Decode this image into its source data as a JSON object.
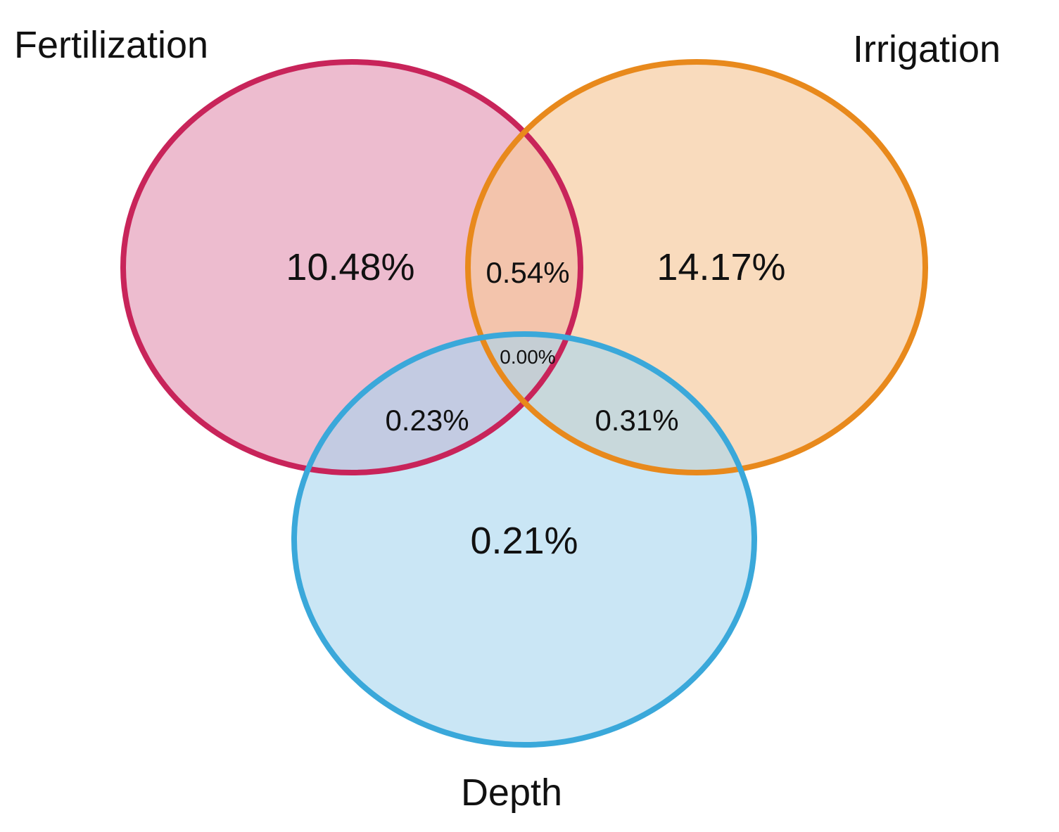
{
  "sets": [
    {
      "key": "fertilization",
      "label": "Fertilization",
      "stroke": "#c8245a",
      "fill": "#e8a3bd"
    },
    {
      "key": "irrigation",
      "label": "Irrigation",
      "stroke": "#e8891c",
      "fill": "#f6c89a"
    },
    {
      "key": "depth",
      "label": "Depth",
      "stroke": "#3aa8da",
      "fill": "#a9d8f0"
    }
  ],
  "regions": {
    "fertilization_only": "10.48%",
    "irrigation_only": "14.17%",
    "depth_only": "0.21%",
    "fertilization_irrigation": "0.54%",
    "fertilization_depth": "0.23%",
    "irrigation_depth": "0.31%",
    "all_three": "0.00%"
  }
}
